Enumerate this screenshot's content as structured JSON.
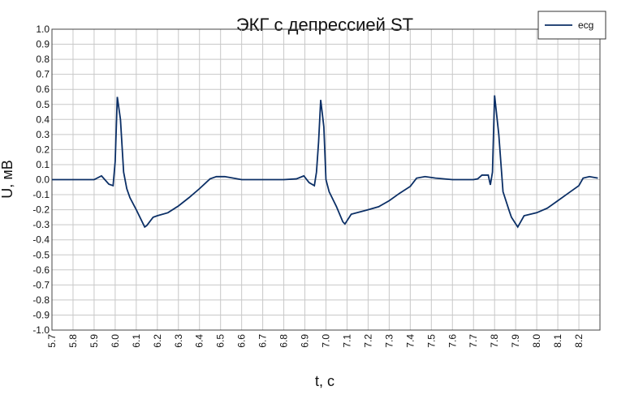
{
  "chart_data": {
    "type": "line",
    "title": "ЭКГ с депрессией ST",
    "xlabel": "t, с",
    "ylabel": "U, мВ",
    "xlim": [
      5.7,
      8.3
    ],
    "ylim": [
      -1.0,
      1.0
    ],
    "grid": true,
    "legend_position": "top-right",
    "x_ticks": [
      "5.7",
      "5.8",
      "5.9",
      "6.0",
      "6.1",
      "6.2",
      "6.3",
      "6.4",
      "6.5",
      "6.6",
      "6.7",
      "6.8",
      "6.9",
      "7.0",
      "7.1",
      "7.2",
      "7.3",
      "7.4",
      "7.5",
      "7.6",
      "7.7",
      "7.8",
      "7.9",
      "8.0",
      "8.1",
      "8.2"
    ],
    "y_ticks": [
      "1.0",
      "0.9",
      "0.8",
      "0.7",
      "0.6",
      "0.5",
      "0.4",
      "0.3",
      "0.2",
      "0.1",
      "0.0",
      "-0.1",
      "-0.2",
      "-0.3",
      "-0.4",
      "-0.5",
      "-0.6",
      "-0.7",
      "-0.8",
      "-0.9",
      "-1.0"
    ],
    "series": [
      {
        "name": "ecg",
        "color": "#0b2f66",
        "x": [
          5.7,
          5.9,
          5.935,
          5.97,
          5.99,
          6.0,
          6.01,
          6.025,
          6.04,
          6.055,
          6.07,
          6.1,
          6.14,
          6.15,
          6.18,
          6.2,
          6.25,
          6.3,
          6.35,
          6.4,
          6.45,
          6.48,
          6.52,
          6.56,
          6.6,
          6.7,
          6.8,
          6.86,
          6.895,
          6.92,
          6.945,
          6.955,
          6.965,
          6.975,
          6.99,
          7.0,
          7.015,
          7.05,
          7.08,
          7.09,
          7.12,
          7.2,
          7.25,
          7.3,
          7.35,
          7.4,
          7.43,
          7.47,
          7.52,
          7.6,
          7.7,
          7.72,
          7.74,
          7.77,
          7.78,
          7.79,
          7.8,
          7.82,
          7.84,
          7.87,
          7.88,
          7.91,
          7.94,
          8.0,
          8.05,
          8.1,
          8.15,
          8.2,
          8.22,
          8.25,
          8.29
        ],
        "y": [
          0.0,
          0.0,
          0.025,
          -0.03,
          -0.04,
          0.12,
          0.55,
          0.4,
          0.05,
          -0.06,
          -0.12,
          -0.2,
          -0.315,
          -0.305,
          -0.25,
          -0.24,
          -0.22,
          -0.175,
          -0.12,
          -0.06,
          0.005,
          0.02,
          0.02,
          0.01,
          0.0,
          0.0,
          0.0,
          0.005,
          0.025,
          -0.02,
          -0.04,
          0.05,
          0.25,
          0.53,
          0.35,
          0.0,
          -0.08,
          -0.18,
          -0.28,
          -0.295,
          -0.23,
          -0.2,
          -0.18,
          -0.14,
          -0.09,
          -0.045,
          0.01,
          0.02,
          0.01,
          0.0,
          0.0,
          0.005,
          0.03,
          0.03,
          -0.035,
          0.05,
          0.56,
          0.3,
          -0.08,
          -0.21,
          -0.25,
          -0.315,
          -0.24,
          -0.22,
          -0.19,
          -0.14,
          -0.09,
          -0.04,
          0.01,
          0.02,
          0.01
        ]
      }
    ]
  }
}
